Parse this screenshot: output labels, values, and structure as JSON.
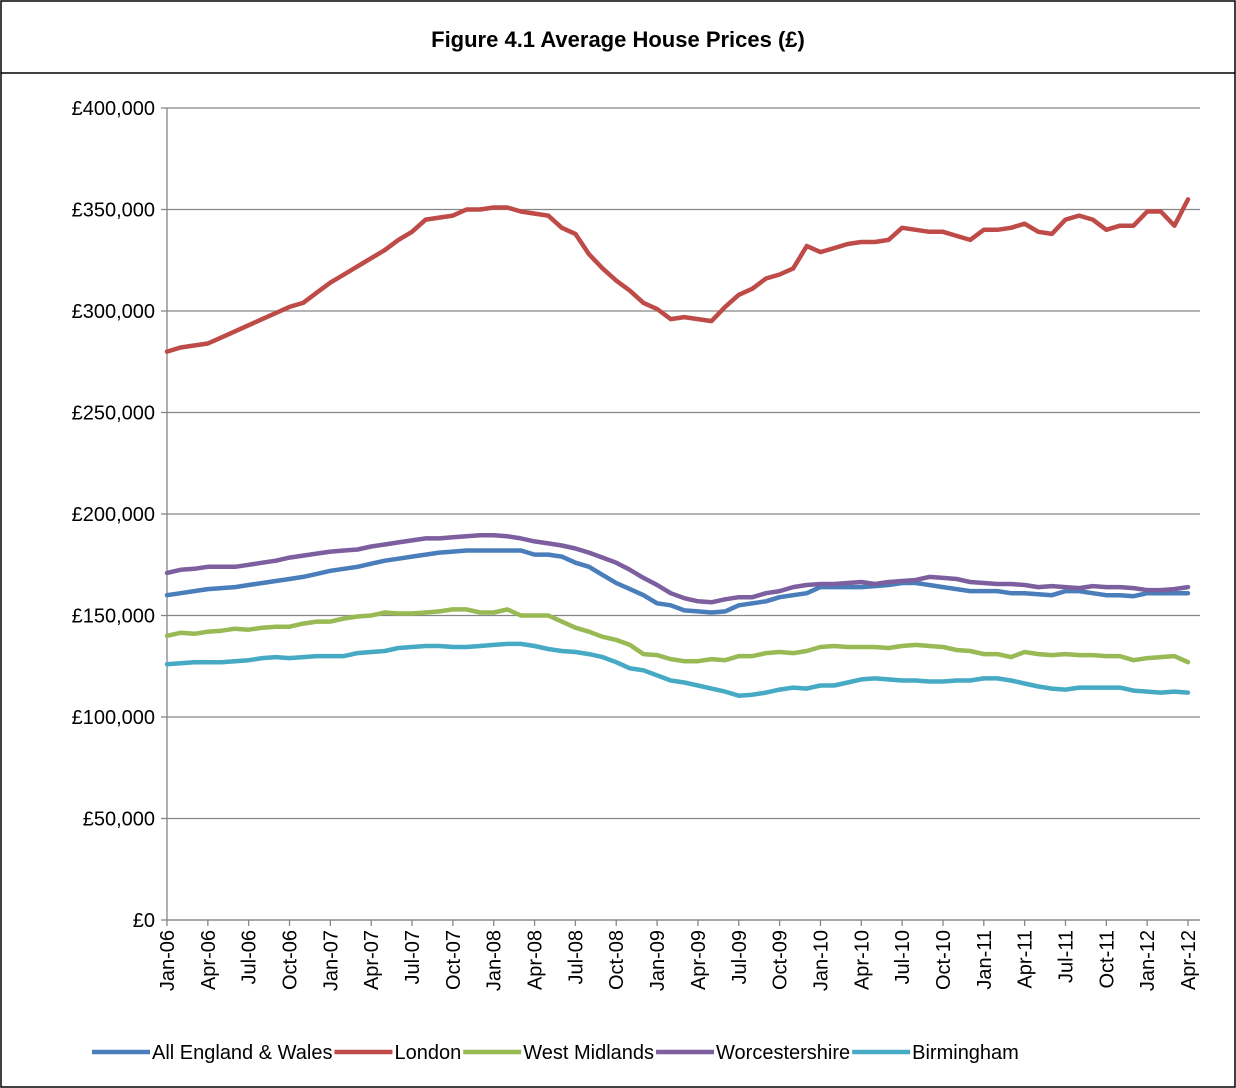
{
  "chart_data": {
    "type": "line",
    "title": "Figure 4.1  Average House Prices (£)",
    "categories": [
      "Jan-06",
      null,
      null,
      "Apr-06",
      null,
      null,
      "Jul-06",
      null,
      null,
      "Oct-06",
      null,
      null,
      "Jan-07",
      null,
      null,
      "Apr-07",
      null,
      null,
      "Jul-07",
      null,
      null,
      "Oct-07",
      null,
      null,
      "Jan-08",
      null,
      null,
      "Apr-08",
      null,
      null,
      "Jul-08",
      null,
      null,
      "Oct-08",
      null,
      null,
      "Jan-09",
      null,
      null,
      "Apr-09",
      null,
      null,
      "Jul-09",
      null,
      null,
      "Oct-09",
      null,
      null,
      "Jan-10",
      null,
      null,
      "Apr-10",
      null,
      null,
      "Jul-10",
      null,
      null,
      "Oct-10",
      null,
      null,
      "Jan-11",
      null,
      null,
      "Apr-11",
      null,
      null,
      "Jul-11",
      null,
      null,
      "Oct-11",
      null,
      null,
      "Jan-12",
      null,
      null,
      "Apr-12"
    ],
    "ylim": [
      0,
      400000
    ],
    "yticks": [
      {
        "value": 0,
        "label": "£0"
      },
      {
        "value": 50000,
        "label": "£50,000"
      },
      {
        "value": 100000,
        "label": "£100,000"
      },
      {
        "value": 150000,
        "label": "£150,000"
      },
      {
        "value": 200000,
        "label": "£200,000"
      },
      {
        "value": 250000,
        "label": "£250,000"
      },
      {
        "value": 300000,
        "label": "£300,000"
      },
      {
        "value": 350000,
        "label": "£350,000"
      },
      {
        "value": 400000,
        "label": "£400,000"
      }
    ],
    "grid": true,
    "legend": "bottom",
    "series": [
      {
        "name": "All England & Wales",
        "color": "#4a7ebb",
        "values": [
          160000,
          161000,
          162000,
          163000,
          163500,
          164000,
          165000,
          166000,
          167000,
          168000,
          169000,
          170500,
          172000,
          173000,
          174000,
          175500,
          177000,
          178000,
          179000,
          180000,
          181000,
          181500,
          182000,
          182000,
          182000,
          182000,
          182000,
          180000,
          180000,
          179000,
          176000,
          174000,
          170000,
          166000,
          163000,
          160000,
          156000,
          155000,
          152500,
          152000,
          151500,
          152000,
          155000,
          156000,
          157000,
          159000,
          160000,
          161000,
          164000,
          164000,
          164000,
          164000,
          164500,
          165000,
          166000,
          166000,
          165000,
          164000,
          163000,
          162000,
          162000,
          162000,
          161000,
          161000,
          160500,
          160000,
          162000,
          162000,
          161000,
          160000,
          160000,
          159500,
          161000,
          161000,
          161000,
          161000
        ]
      },
      {
        "name": "London",
        "color": "#be4b48",
        "values": [
          280000,
          282000,
          283000,
          284000,
          287000,
          290000,
          293000,
          296000,
          299000,
          302000,
          304000,
          309000,
          314000,
          318000,
          322000,
          326000,
          330000,
          335000,
          339000,
          345000,
          346000,
          347000,
          350000,
          350000,
          351000,
          351000,
          349000,
          348000,
          347000,
          341000,
          338000,
          328000,
          321000,
          315000,
          310000,
          304000,
          301000,
          296000,
          297000,
          296000,
          295000,
          302000,
          308000,
          311000,
          316000,
          318000,
          321000,
          332000,
          329000,
          331000,
          333000,
          334000,
          334000,
          335000,
          341000,
          340000,
          339000,
          339000,
          337000,
          335000,
          340000,
          340000,
          341000,
          343000,
          339000,
          338000,
          345000,
          347000,
          345000,
          340000,
          342000,
          342000,
          349000,
          349000,
          342000,
          355000
        ]
      },
      {
        "name": "West Midlands",
        "color": "#98b954",
        "values": [
          140000,
          141500,
          141000,
          142000,
          142500,
          143500,
          143000,
          144000,
          144500,
          144500,
          146000,
          147000,
          147000,
          148500,
          149500,
          150000,
          151500,
          151000,
          151000,
          151500,
          152000,
          153000,
          153000,
          151500,
          151500,
          153000,
          150000,
          150000,
          150000,
          147000,
          144000,
          142000,
          139500,
          138000,
          135500,
          131000,
          130500,
          128500,
          127500,
          127500,
          128500,
          128000,
          130000,
          130000,
          131500,
          132000,
          131500,
          132500,
          134500,
          135000,
          134500,
          134500,
          134500,
          134000,
          135000,
          135500,
          135000,
          134500,
          133000,
          132500,
          131000,
          131000,
          129500,
          132000,
          131000,
          130500,
          131000,
          130500,
          130500,
          130000,
          130000,
          128000,
          129000,
          129500,
          130000,
          127000
        ]
      },
      {
        "name": "Worcestershire",
        "color": "#7d5fa0",
        "values": [
          171000,
          172500,
          173000,
          174000,
          174000,
          174000,
          175000,
          176000,
          177000,
          178500,
          179500,
          180500,
          181500,
          182000,
          182500,
          184000,
          185000,
          186000,
          187000,
          188000,
          188000,
          188500,
          189000,
          189500,
          189500,
          189000,
          188000,
          186500,
          185500,
          184500,
          183000,
          181000,
          178500,
          176000,
          172500,
          168500,
          165000,
          161000,
          158500,
          157000,
          156500,
          158000,
          159000,
          159000,
          161000,
          162000,
          164000,
          165000,
          165500,
          165500,
          166000,
          166500,
          165500,
          166500,
          167000,
          167500,
          169000,
          168500,
          168000,
          166500,
          166000,
          165500,
          165500,
          165000,
          164000,
          164500,
          164000,
          163500,
          164500,
          164000,
          164000,
          163500,
          162500,
          162500,
          163000,
          164000
        ]
      },
      {
        "name": "Birmingham",
        "color": "#46aac5",
        "values": [
          126000,
          126500,
          127000,
          127000,
          127000,
          127500,
          128000,
          129000,
          129500,
          129000,
          129500,
          130000,
          130000,
          130000,
          131500,
          132000,
          132500,
          134000,
          134500,
          135000,
          135000,
          134500,
          134500,
          135000,
          135500,
          136000,
          136000,
          135000,
          133500,
          132500,
          132000,
          131000,
          129500,
          127000,
          124000,
          123000,
          120500,
          118000,
          117000,
          115500,
          114000,
          112500,
          110500,
          111000,
          112000,
          113500,
          114500,
          114000,
          115500,
          115500,
          117000,
          118500,
          119000,
          118500,
          118000,
          118000,
          117500,
          117500,
          118000,
          118000,
          119000,
          119000,
          118000,
          116500,
          115000,
          114000,
          113500,
          114500,
          114500,
          114500,
          114500,
          113000,
          112500,
          112000,
          112500,
          112000
        ]
      }
    ]
  }
}
